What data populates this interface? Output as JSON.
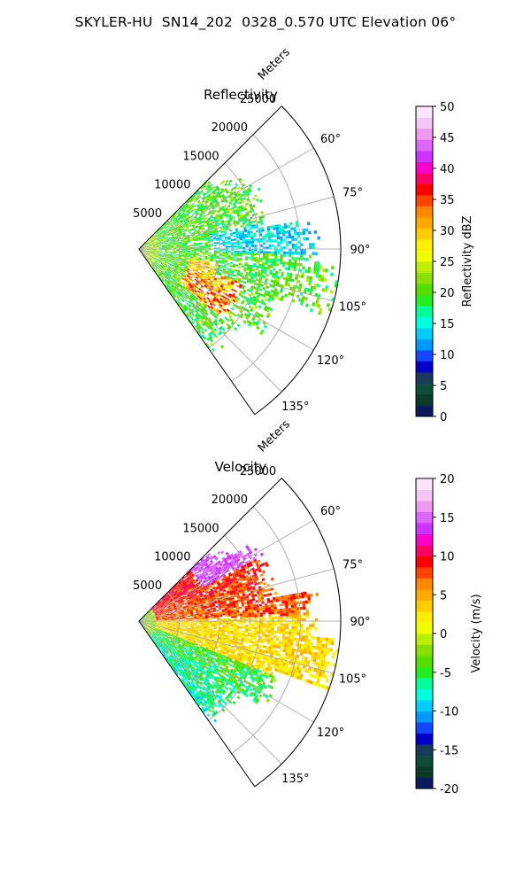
{
  "title": "SKYLER-HU  SN14_202  0328_0.570 UTC Elevation 06°",
  "chart_data": [
    {
      "type": "heatmap",
      "projection": "polar-sector",
      "title": "Reflectivity",
      "radial_label": "Meters",
      "radial_ticks": [
        5000,
        10000,
        15000,
        20000,
        25000
      ],
      "r_max": 25000,
      "theta_range_deg": [
        45,
        145
      ],
      "theta_ticks": [
        "60°",
        "75°",
        "90°",
        "105°",
        "120°",
        "135°"
      ],
      "theta_tick_values": [
        60,
        75,
        90,
        105,
        120,
        135
      ],
      "grid": true,
      "colorbar": {
        "label": "Reflectivity dBZ",
        "min": 0,
        "max": 50,
        "ticks": [
          0,
          5,
          10,
          15,
          20,
          25,
          30,
          35,
          40,
          45,
          50
        ],
        "colors": [
          "#0a1a5c",
          "#0b3a2a",
          "#0d4d3a",
          "#1a3a5a",
          "#0000c8",
          "#1446ff",
          "#0099ff",
          "#00ccff",
          "#00ffdd",
          "#00ff99",
          "#22ee22",
          "#55dd00",
          "#88e000",
          "#bbee00",
          "#eeff00",
          "#ffee00",
          "#ffcc00",
          "#ffaa00",
          "#ff8800",
          "#ff4400",
          "#ff0000",
          "#ff0066",
          "#ff00cc",
          "#cc33ff",
          "#dd66ff",
          "#ee99ee",
          "#f5c5f5",
          "#fbe4fb"
        ]
      },
      "field_description": "sector largely 15-25 dBZ (green/yellow-green), cyan band near 80-90°, cores up to ~38 dBZ near 110-125° at ~8000-16000 m"
    },
    {
      "type": "heatmap",
      "projection": "polar-sector",
      "title": "Velocity",
      "radial_label": "Meters",
      "radial_ticks": [
        5000,
        10000,
        15000,
        20000,
        25000
      ],
      "r_max": 25000,
      "theta_range_deg": [
        45,
        145
      ],
      "theta_ticks": [
        "60°",
        "75°",
        "90°",
        "105°",
        "120°",
        "135°"
      ],
      "theta_tick_values": [
        60,
        75,
        90,
        105,
        120,
        135
      ],
      "grid": true,
      "colorbar": {
        "label": "Velocity (m/s)",
        "min": -20,
        "max": 20,
        "ticks": [
          -20,
          -15,
          -10,
          -5,
          0,
          5,
          10,
          15,
          20
        ],
        "colors": [
          "#0a1a5c",
          "#0b3a2a",
          "#0d4d3a",
          "#1a3a5a",
          "#0000c8",
          "#1446ff",
          "#0099ff",
          "#00ccff",
          "#00ffdd",
          "#00ff99",
          "#22ee22",
          "#55dd00",
          "#88e000",
          "#bbee00",
          "#eeff00",
          "#ffee00",
          "#ffcc00",
          "#ffaa00",
          "#ff8800",
          "#ff4400",
          "#ff0000",
          "#ff0066",
          "#ff00cc",
          "#cc33ff",
          "#dd66ff",
          "#ee99ee",
          "#f5c5f5",
          "#fbe4fb"
        ]
      },
      "field_description": "red/orange (5-12 m/s) at 55-90°, yellow (2-6 m/s) at 90-115°, green (-2 to -8 m/s) at 110-140°"
    }
  ]
}
